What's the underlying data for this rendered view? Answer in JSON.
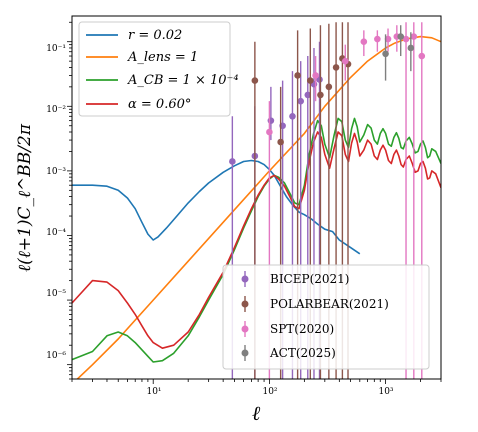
{
  "chart_data": {
    "type": "line",
    "xlabel": "ℓ",
    "ylabel": "ℓ(ℓ+1)C_ℓ^BB/2π",
    "xscale": "log",
    "yscale": "log",
    "xlim": [
      2,
      3000
    ],
    "ylim": [
      6e-07,
      0.25
    ],
    "x_tick_labels": [
      "10¹",
      "10²",
      "10³"
    ],
    "y_tick_labels": [
      "10⁻⁶",
      "10⁻⁵",
      "10⁻⁴",
      "10⁻³",
      "10⁻²",
      "10⁻¹"
    ],
    "legend_lines": [
      {
        "label": "r = 0.02",
        "color": "#1f77b4"
      },
      {
        "label": "A_lens = 1",
        "color": "#ff7f0e"
      },
      {
        "label": "A_CB = 1 × 10⁻⁴",
        "color": "#2ca02c"
      },
      {
        "label": "α = 0.60°",
        "color": "#d62728"
      }
    ],
    "legend_points": [
      {
        "label": "BICEP(2021)",
        "color": "#9467bd"
      },
      {
        "label": "POLARBEAR(2021)",
        "color": "#8c564b"
      },
      {
        "label": "SPT(2020)",
        "color": "#e377c2"
      },
      {
        "label": "ACT(2025)",
        "color": "#7f7f7f"
      }
    ],
    "series": [
      {
        "name": "r = 0.02",
        "color": "#1f77b4",
        "x": [
          2,
          3,
          4,
          5,
          6,
          7,
          8,
          9,
          10,
          11,
          13,
          16,
          20,
          25,
          30,
          40,
          50,
          60,
          70,
          80,
          90,
          100,
          110,
          120,
          140,
          160,
          180,
          200,
          230,
          260,
          300,
          350,
          400,
          500,
          600
        ],
        "y": [
          0.0006,
          0.0006,
          0.00058,
          0.0005,
          0.00038,
          0.00026,
          0.00016,
          0.000105,
          8.5e-05,
          9.5e-05,
          0.00013,
          0.0002,
          0.00032,
          0.00048,
          0.00065,
          0.00095,
          0.0012,
          0.0014,
          0.00145,
          0.0014,
          0.00125,
          0.00105,
          0.00085,
          0.00065,
          0.0004,
          0.00029,
          0.00023,
          0.00021,
          0.00018,
          0.00015,
          0.000125,
          0.000115,
          8.5e-05,
          6.5e-05,
          5.2e-05
        ]
      },
      {
        "name": "A_lens = 1",
        "color": "#ff7f0e",
        "x": [
          2,
          3,
          5,
          10,
          20,
          50,
          100,
          200,
          300,
          500,
          700,
          1000,
          1200,
          1500,
          2000,
          2500,
          3000
        ],
        "y": [
          5e-07,
          1e-06,
          2.5e-06,
          1e-05,
          4e-05,
          0.00025,
          0.001,
          0.0038,
          0.01,
          0.028,
          0.05,
          0.08,
          0.095,
          0.11,
          0.12,
          0.115,
          0.1
        ]
      },
      {
        "name": "A_CB = 1 × 10⁻⁴",
        "color": "#2ca02c",
        "x": [
          2,
          3,
          4,
          5,
          6,
          7,
          8,
          9,
          10,
          12,
          15,
          20,
          25,
          30,
          40,
          50,
          60,
          70,
          80,
          90,
          100,
          110,
          120,
          135,
          150,
          165,
          180,
          200,
          220,
          240,
          260,
          280,
          300,
          330,
          360,
          390,
          420,
          450,
          480,
          510,
          540,
          570,
          600,
          650,
          700,
          750,
          800,
          850,
          900,
          950,
          1000,
          1060,
          1120,
          1180,
          1240,
          1300,
          1360,
          1420,
          1500,
          1600,
          1700,
          1800,
          1900,
          2000,
          2100,
          2200,
          2300,
          2400,
          2500,
          2700,
          3000
        ],
        "y": [
          1.2e-06,
          1.6e-06,
          2.8e-06,
          3.2e-06,
          2.8e-06,
          2.2e-06,
          1.7e-06,
          1.35e-06,
          1.1e-06,
          1.15e-06,
          1.5e-06,
          2.8e-06,
          5.5e-06,
          1e-05,
          2.5e-05,
          6e-05,
          0.00013,
          0.00024,
          0.0004,
          0.00058,
          0.00075,
          0.00085,
          0.0008,
          0.00065,
          0.00045,
          0.00032,
          0.0003,
          0.0006,
          0.0018,
          0.0038,
          0.006,
          0.005,
          0.0026,
          0.0016,
          0.0035,
          0.0065,
          0.0058,
          0.003,
          0.0023,
          0.0045,
          0.0065,
          0.0048,
          0.0028,
          0.0036,
          0.0052,
          0.0046,
          0.003,
          0.0026,
          0.0038,
          0.0045,
          0.0038,
          0.0026,
          0.0024,
          0.0033,
          0.0039,
          0.0032,
          0.0023,
          0.0022,
          0.0029,
          0.0033,
          0.0026,
          0.0019,
          0.002,
          0.0026,
          0.0029,
          0.0023,
          0.0016,
          0.0017,
          0.0022,
          0.002,
          0.0013
        ]
      },
      {
        "name": "α = 0.60°",
        "color": "#d62728",
        "x": [
          2,
          3,
          4,
          5,
          6,
          7,
          8,
          9,
          10,
          12,
          15,
          20,
          25,
          30,
          40,
          50,
          60,
          70,
          80,
          90,
          100,
          110,
          120,
          135,
          150,
          165,
          180,
          200,
          220,
          240,
          260,
          280,
          300,
          330,
          360,
          390,
          420,
          450,
          480,
          510,
          540,
          570,
          600,
          650,
          700,
          750,
          800,
          850,
          900,
          950,
          1000,
          1060,
          1120,
          1180,
          1240,
          1300,
          1360,
          1420,
          1500,
          1600,
          1700,
          1800,
          1900,
          2000,
          2100,
          2200,
          2300,
          2400,
          2500,
          2700,
          3000
        ],
        "y": [
          9e-06,
          2e-05,
          1.9e-05,
          1.4e-05,
          9e-06,
          6e-06,
          4e-06,
          2.8e-06,
          2.2e-06,
          1.8e-06,
          2e-06,
          3.2e-06,
          6e-06,
          1.1e-05,
          2.7e-05,
          6.5e-05,
          0.00014,
          0.00026,
          0.00042,
          0.0006,
          0.00078,
          0.00085,
          0.00075,
          0.00058,
          0.0004,
          0.00028,
          0.00026,
          0.0005,
          0.0014,
          0.0028,
          0.004,
          0.0033,
          0.0018,
          0.0011,
          0.0022,
          0.004,
          0.0035,
          0.0018,
          0.0014,
          0.0027,
          0.0038,
          0.0028,
          0.0017,
          0.0021,
          0.003,
          0.0026,
          0.0017,
          0.0015,
          0.0021,
          0.0025,
          0.0021,
          0.00145,
          0.0013,
          0.0018,
          0.0021,
          0.0017,
          0.00125,
          0.00115,
          0.0015,
          0.0017,
          0.0013,
          0.00095,
          0.001,
          0.0013,
          0.0014,
          0.0011,
          0.00075,
          0.00078,
          0.001,
          0.0009,
          0.00055
        ]
      }
    ],
    "points": [
      {
        "name": "BICEP(2021)",
        "color": "#9467bd",
        "x": [
          48,
          75,
          103,
          130,
          158,
          186,
          214,
          242,
          270
        ],
        "y": [
          0.0014,
          0.0017,
          0.006,
          0.005,
          0.007,
          0.012,
          0.015,
          0.022,
          0.026
        ],
        "ylo": [
          1e-07,
          1e-07,
          0.003,
          1e-07,
          1e-07,
          1e-07,
          1e-07,
          1e-07,
          1e-07
        ],
        "yhi": [
          0.007,
          0.01,
          0.02,
          0.025,
          0.035,
          0.05,
          0.06,
          0.08,
          0.1
        ]
      },
      {
        "name": "POLARBEAR(2021)",
        "color": "#8c564b",
        "x": [
          75,
          125,
          175,
          225,
          275,
          325,
          375,
          425,
          475
        ],
        "y": [
          0.025,
          0.0028,
          0.03,
          0.025,
          0.015,
          0.02,
          0.04,
          0.055,
          0.045
        ],
        "ylo": [
          1e-07,
          1e-07,
          1e-07,
          1e-07,
          1e-07,
          1e-07,
          1e-07,
          1e-07,
          1e-07
        ],
        "yhi": [
          0.1,
          0.02,
          0.15,
          0.16,
          0.18,
          0.19,
          0.2,
          0.2,
          0.2
        ]
      },
      {
        "name": "SPT(2020)",
        "color": "#e377c2",
        "x": [
          100,
          250,
          450,
          650,
          850,
          1050,
          1250,
          1500,
          1750,
          2050
        ],
        "y": [
          0.004,
          0.03,
          0.05,
          0.1,
          0.11,
          0.11,
          0.12,
          0.11,
          0.12,
          0.06
        ],
        "ylo": [
          1e-07,
          0.012,
          0.025,
          0.06,
          0.07,
          0.07,
          0.07,
          1e-07,
          1e-07,
          1e-07
        ],
        "yhi": [
          0.012,
          0.06,
          0.09,
          0.15,
          0.15,
          0.16,
          0.18,
          0.2,
          0.2,
          0.2
        ]
      },
      {
        "name": "ACT(2025)",
        "color": "#7f7f7f",
        "x": [
          1000,
          1350,
          1650
        ],
        "y": [
          0.065,
          0.12,
          0.08
        ],
        "ylo": [
          0.025,
          0.06,
          0.035
        ],
        "yhi": [
          0.13,
          0.18,
          0.14
        ]
      }
    ]
  }
}
